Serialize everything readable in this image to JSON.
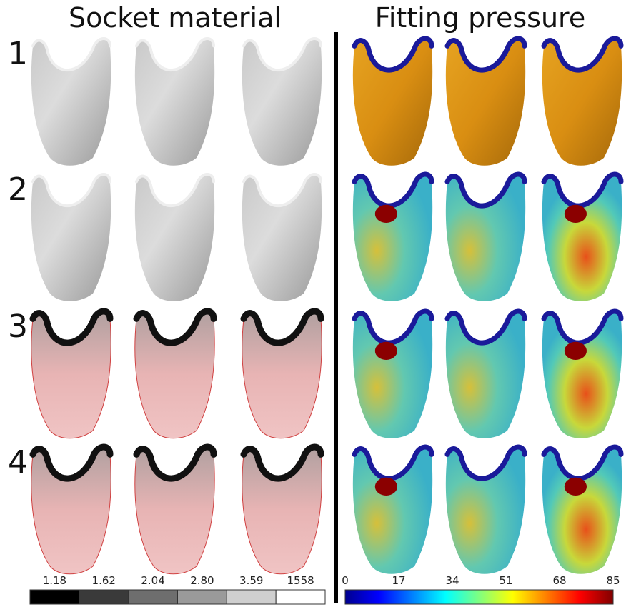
{
  "titles": [
    "Socket material",
    "Fitting pressure"
  ],
  "rows": [
    "1",
    "2",
    "3",
    "4"
  ],
  "material_scale": {
    "labels": [
      "1.18",
      "1.62",
      "2.04",
      "2.80",
      "3.59",
      "1558"
    ]
  },
  "pressure_scale": {
    "ticks": [
      "0",
      "17",
      "34",
      "51",
      "68",
      "85"
    ]
  }
}
